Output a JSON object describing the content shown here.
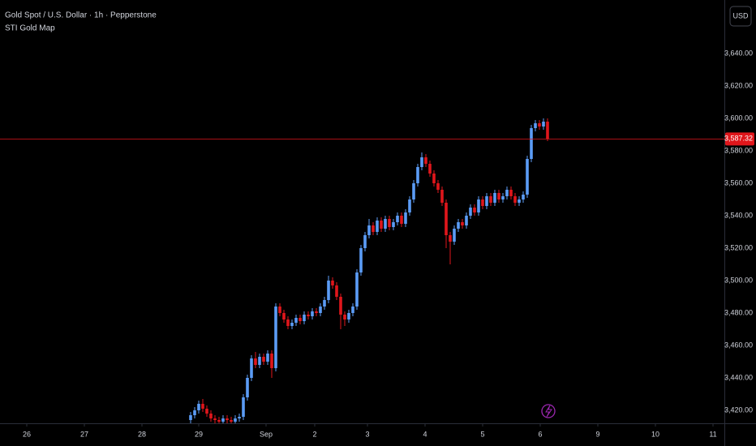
{
  "chart_data": {
    "type": "candlestick",
    "title": "Gold Spot / U.S. Dollar · 1h · Pepperstone",
    "subtitle": "STI Gold Map",
    "currency": "USD",
    "up_color": "#5b9cf6",
    "down_color": "#e0161b",
    "xlim": [
      0,
      178.6
    ],
    "ylim": [
      3412,
      3673
    ],
    "xticks": [
      {
        "value": 6.6,
        "label": "26"
      },
      {
        "value": 20.8,
        "label": "27"
      },
      {
        "value": 35,
        "label": "28"
      },
      {
        "value": 49,
        "label": "29"
      },
      {
        "value": 65.6,
        "label": "Sep"
      },
      {
        "value": 77.6,
        "label": "2"
      },
      {
        "value": 90.6,
        "label": "3"
      },
      {
        "value": 104.8,
        "label": "4"
      },
      {
        "value": 119,
        "label": "5"
      },
      {
        "value": 133.2,
        "label": "6"
      },
      {
        "value": 147.4,
        "label": "9"
      },
      {
        "value": 161.6,
        "label": "10"
      },
      {
        "value": 175.8,
        "label": "11"
      }
    ],
    "yticks": [
      {
        "value": 3420,
        "label": "3,420.00"
      },
      {
        "value": 3440,
        "label": "3,440.00"
      },
      {
        "value": 3460,
        "label": "3,460.00"
      },
      {
        "value": 3480,
        "label": "3,480.00"
      },
      {
        "value": 3500,
        "label": "3,500.00"
      },
      {
        "value": 3520,
        "label": "3,520.00"
      },
      {
        "value": 3540,
        "label": "3,540.00"
      },
      {
        "value": 3560,
        "label": "3,560.00"
      },
      {
        "value": 3580,
        "label": "3,580.00"
      },
      {
        "value": 3600,
        "label": "3,600.00"
      },
      {
        "value": 3620,
        "label": "3,620.00"
      },
      {
        "value": 3640,
        "label": "3,640.00"
      }
    ],
    "last_price": {
      "value": 3587.32,
      "label": "3,587.32"
    },
    "x": [
      47,
      48,
      49,
      50,
      51,
      52,
      53,
      54,
      55,
      56,
      57,
      58,
      59,
      60,
      61,
      62,
      63,
      64,
      65,
      66,
      67,
      68,
      69,
      70,
      71,
      72,
      73,
      74,
      75,
      76,
      77,
      78,
      79,
      80,
      81,
      82,
      83,
      84,
      85,
      86,
      87,
      88,
      89,
      90,
      91,
      92,
      93,
      94,
      95,
      96,
      97,
      98,
      99,
      100,
      101,
      102,
      103,
      104,
      105,
      106,
      107,
      108,
      109,
      110,
      111,
      112,
      113,
      114,
      115,
      116,
      117,
      118,
      119,
      120,
      121,
      122,
      123,
      124,
      125,
      126,
      127,
      128,
      129,
      130,
      131,
      132,
      133,
      134,
      135
    ],
    "open": [
      3414,
      3417,
      3420,
      3424,
      3421,
      3418,
      3415,
      3414,
      3413,
      3415,
      3414,
      3413,
      3415,
      3416,
      3428,
      3440,
      3452,
      3448,
      3453,
      3450,
      3455,
      3446,
      3484,
      3480,
      3476,
      3472,
      3474,
      3477,
      3475,
      3479,
      3478,
      3481,
      3480,
      3484,
      3488,
      3500,
      3497,
      3490,
      3479,
      3476,
      3480,
      3484,
      3505,
      3520,
      3528,
      3534,
      3530,
      3537,
      3532,
      3538,
      3533,
      3536,
      3540,
      3535,
      3542,
      3550,
      3560,
      3570,
      3576,
      3572,
      3566,
      3560,
      3556,
      3548,
      3528,
      3524,
      3532,
      3536,
      3534,
      3540,
      3545,
      3542,
      3550,
      3546,
      3552,
      3548,
      3554,
      3550,
      3552,
      3556,
      3552,
      3548,
      3550,
      3553,
      3575,
      3594,
      3597,
      3595,
      3598
    ],
    "high": [
      3419,
      3422,
      3426,
      3427,
      3423,
      3420,
      3417,
      3416,
      3417,
      3417,
      3416,
      3417,
      3418,
      3430,
      3442,
      3454,
      3456,
      3455,
      3455,
      3457,
      3457,
      3486,
      3486,
      3482,
      3478,
      3476,
      3479,
      3479,
      3481,
      3481,
      3483,
      3483,
      3486,
      3490,
      3503,
      3502,
      3499,
      3492,
      3481,
      3482,
      3486,
      3507,
      3522,
      3530,
      3538,
      3536,
      3539,
      3539,
      3540,
      3540,
      3538,
      3542,
      3542,
      3544,
      3552,
      3562,
      3572,
      3579,
      3578,
      3574,
      3568,
      3562,
      3558,
      3550,
      3530,
      3534,
      3538,
      3538,
      3542,
      3547,
      3547,
      3552,
      3552,
      3554,
      3554,
      3556,
      3556,
      3554,
      3558,
      3558,
      3554,
      3552,
      3555,
      3577,
      3596,
      3599,
      3599,
      3600,
      3600
    ],
    "low": [
      3412,
      3415,
      3418,
      3419,
      3416,
      3413,
      3412,
      3411,
      3411,
      3412,
      3411,
      3411,
      3413,
      3414,
      3426,
      3438,
      3446,
      3446,
      3448,
      3448,
      3440,
      3444,
      3478,
      3474,
      3470,
      3470,
      3472,
      3473,
      3473,
      3476,
      3476,
      3478,
      3478,
      3482,
      3486,
      3495,
      3488,
      3470,
      3472,
      3474,
      3478,
      3482,
      3503,
      3518,
      3526,
      3528,
      3528,
      3530,
      3530,
      3531,
      3531,
      3534,
      3533,
      3533,
      3540,
      3548,
      3558,
      3568,
      3570,
      3564,
      3558,
      3554,
      3546,
      3520,
      3510,
      3522,
      3530,
      3532,
      3532,
      3538,
      3540,
      3540,
      3544,
      3544,
      3546,
      3546,
      3548,
      3548,
      3550,
      3550,
      3546,
      3546,
      3548,
      3551,
      3573,
      3592,
      3593,
      3593,
      3586
    ],
    "close": [
      3417,
      3420,
      3424,
      3421,
      3418,
      3415,
      3414,
      3413,
      3415,
      3414,
      3413,
      3415,
      3416,
      3428,
      3440,
      3452,
      3448,
      3453,
      3450,
      3455,
      3446,
      3484,
      3480,
      3476,
      3472,
      3474,
      3477,
      3475,
      3479,
      3478,
      3481,
      3480,
      3484,
      3488,
      3500,
      3497,
      3490,
      3479,
      3476,
      3480,
      3484,
      3505,
      3520,
      3528,
      3534,
      3530,
      3537,
      3532,
      3538,
      3533,
      3536,
      3540,
      3535,
      3542,
      3550,
      3560,
      3570,
      3576,
      3572,
      3566,
      3560,
      3556,
      3548,
      3528,
      3524,
      3532,
      3536,
      3534,
      3540,
      3545,
      3542,
      3550,
      3546,
      3552,
      3548,
      3554,
      3550,
      3552,
      3556,
      3552,
      3548,
      3550,
      3553,
      3575,
      3594,
      3597,
      3595,
      3598,
      3587.32
    ]
  }
}
